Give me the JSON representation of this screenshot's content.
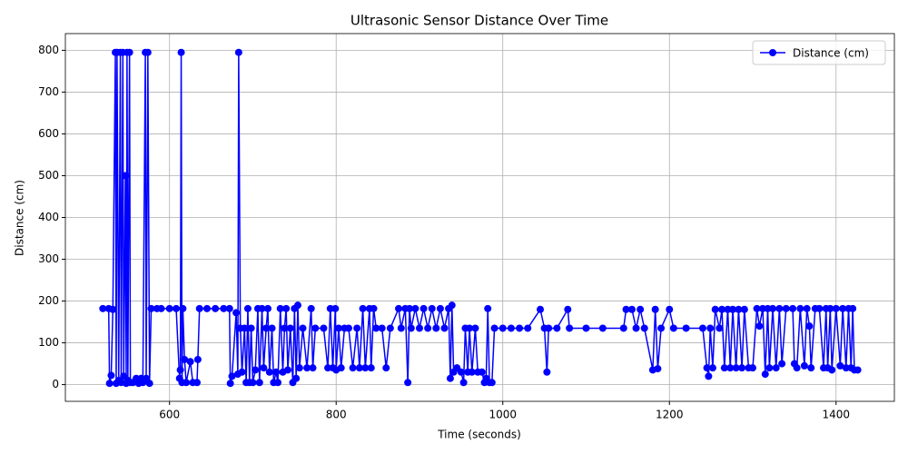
{
  "chart_data": {
    "type": "line",
    "title": "Ultrasonic Sensor Distance Over Time",
    "x_label": "Time (seconds)",
    "y_label": "Distance (cm)",
    "x": [
      520,
      527,
      528,
      530,
      532,
      535,
      536,
      537,
      539,
      541,
      542,
      544,
      545,
      547,
      548,
      549,
      550,
      552,
      553,
      556,
      560,
      563,
      566,
      568,
      571,
      572,
      574,
      576,
      578,
      585,
      590,
      600,
      608,
      612,
      613,
      614,
      615,
      616,
      618,
      620,
      625,
      628,
      633,
      634,
      636,
      645,
      655,
      665,
      672,
      673,
      675,
      680,
      682,
      683,
      685,
      687,
      690,
      692,
      694,
      696,
      698,
      700,
      703,
      706,
      708,
      711,
      713,
      716,
      718,
      720,
      723,
      725,
      728,
      730,
      733,
      736,
      738,
      740,
      742,
      745,
      748,
      750,
      752,
      754,
      756,
      760,
      765,
      770,
      772,
      775,
      785,
      790,
      793,
      796,
      799,
      800,
      803,
      806,
      810,
      815,
      820,
      825,
      828,
      832,
      835,
      840,
      842,
      845,
      848,
      855,
      860,
      865,
      875,
      878,
      883,
      886,
      888,
      890,
      895,
      900,
      905,
      910,
      915,
      920,
      925,
      930,
      935,
      937,
      939,
      941,
      945,
      950,
      953,
      955,
      958,
      960,
      963,
      967,
      970,
      975,
      978,
      980,
      982,
      984,
      987,
      990,
      1000,
      1010,
      1020,
      1030,
      1045,
      1050,
      1053,
      1055,
      1065,
      1078,
      1080,
      1100,
      1120,
      1145,
      1148,
      1155,
      1160,
      1165,
      1170,
      1180,
      1183,
      1186,
      1190,
      1200,
      1205,
      1220,
      1240,
      1245,
      1247,
      1249,
      1252,
      1255,
      1260,
      1263,
      1266,
      1270,
      1273,
      1276,
      1280,
      1283,
      1287,
      1290,
      1295,
      1300,
      1305,
      1308,
      1312,
      1315,
      1318,
      1320,
      1324,
      1328,
      1332,
      1335,
      1340,
      1348,
      1350,
      1353,
      1357,
      1362,
      1365,
      1368,
      1370,
      1375,
      1380,
      1385,
      1388,
      1390,
      1393,
      1395,
      1400,
      1405,
      1408,
      1412,
      1415,
      1418,
      1420,
      1422,
      1426
    ],
    "series": [
      {
        "name": "Distance (cm)",
        "color": "#0000ff",
        "values": [
          182,
          182,
          3,
          22,
          180,
          795,
          3,
          795,
          10,
          795,
          5,
          795,
          20,
          500,
          3,
          795,
          10,
          795,
          5,
          5,
          15,
          3,
          15,
          5,
          795,
          15,
          795,
          3,
          182,
          182,
          182,
          182,
          182,
          15,
          35,
          795,
          5,
          182,
          60,
          5,
          55,
          5,
          5,
          60,
          182,
          182,
          182,
          182,
          182,
          3,
          20,
          172,
          25,
          795,
          135,
          30,
          135,
          5,
          182,
          5,
          135,
          5,
          35,
          182,
          5,
          182,
          40,
          135,
          182,
          30,
          135,
          5,
          30,
          5,
          182,
          30,
          135,
          182,
          35,
          135,
          5,
          182,
          15,
          190,
          40,
          135,
          40,
          182,
          40,
          135,
          135,
          40,
          182,
          40,
          182,
          35,
          135,
          40,
          135,
          135,
          40,
          135,
          40,
          182,
          40,
          182,
          40,
          182,
          135,
          135,
          40,
          135,
          182,
          135,
          182,
          5,
          182,
          135,
          182,
          135,
          182,
          135,
          182,
          135,
          182,
          135,
          182,
          15,
          190,
          30,
          40,
          30,
          5,
          135,
          30,
          135,
          30,
          135,
          30,
          30,
          5,
          15,
          182,
          5,
          5,
          135,
          135,
          135,
          135,
          135,
          180,
          135,
          30,
          135,
          135,
          180,
          135,
          135,
          135,
          135,
          180,
          180,
          135,
          180,
          135,
          35,
          180,
          38,
          135,
          180,
          135,
          135,
          135,
          40,
          20,
          135,
          40,
          180,
          135,
          180,
          40,
          180,
          40,
          180,
          40,
          180,
          40,
          180,
          40,
          40,
          182,
          140,
          182,
          25,
          182,
          40,
          182,
          40,
          182,
          50,
          182,
          182,
          50,
          40,
          182,
          45,
          182,
          140,
          40,
          182,
          182,
          40,
          182,
          40,
          182,
          35,
          182,
          45,
          182,
          40,
          182,
          40,
          182,
          35,
          35
        ]
      }
    ],
    "xlim": [
      475,
      1470
    ],
    "ylim": [
      -40,
      840
    ],
    "xticks": [
      600,
      800,
      1000,
      1200,
      1400
    ],
    "yticks": [
      0,
      100,
      200,
      300,
      400,
      500,
      600,
      700,
      800
    ],
    "grid": true,
    "legend": "upper right"
  }
}
